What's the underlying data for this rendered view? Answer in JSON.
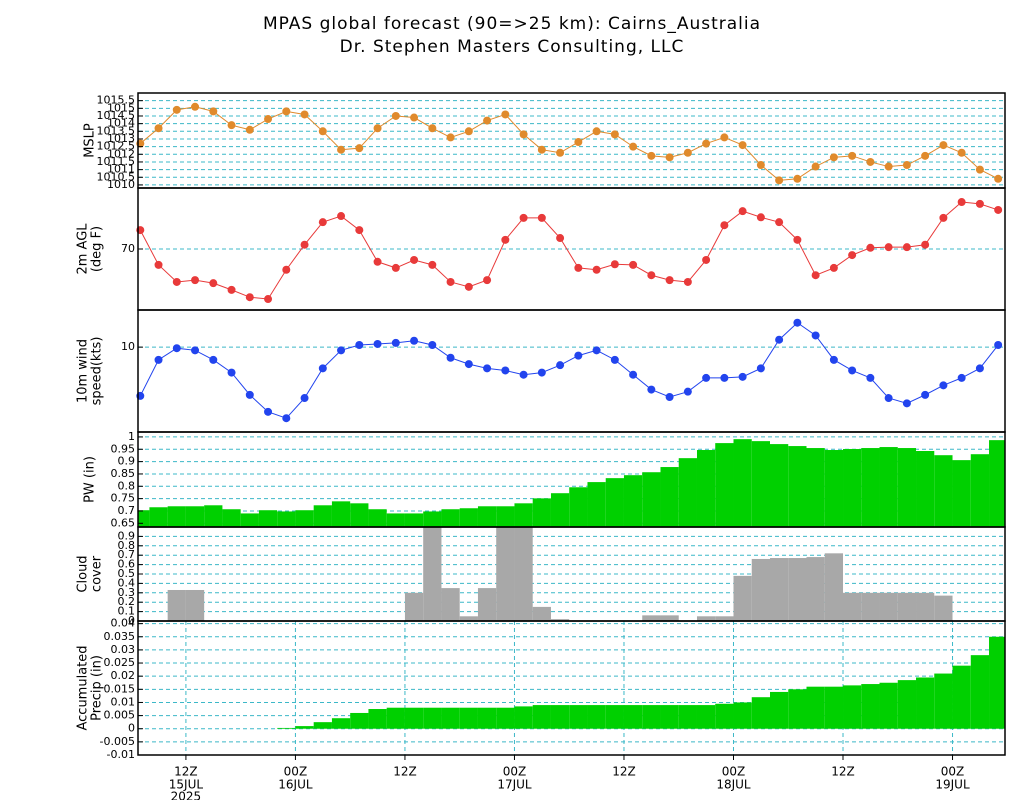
{
  "title": [
    "MPAS global forecast (90=>25 km): Cairns_Australia",
    "Dr. Stephen Masters Consulting, LLC"
  ],
  "chart_data": [
    {
      "type": "line",
      "ylabel": [
        "MSLP"
      ],
      "color": "#e08a2c",
      "grid": true,
      "xlim": [
        6.75,
        101.75
      ],
      "ylim": [
        1009.8,
        1016.0
      ],
      "yticks": [
        1010,
        1010.5,
        1011,
        1011.5,
        1012,
        1012.5,
        1013,
        1013.5,
        1014,
        1014.5,
        1015,
        1015.5
      ],
      "x": [
        7,
        9,
        11,
        13,
        15,
        17,
        19,
        21,
        23,
        25,
        27,
        29,
        31,
        33,
        35,
        37,
        39,
        41,
        43,
        45,
        47,
        49,
        51,
        53,
        55,
        57,
        59,
        61,
        63,
        65,
        67,
        69,
        71,
        73,
        75,
        77,
        79,
        81,
        83,
        85,
        87,
        89,
        91,
        93,
        95,
        97,
        99,
        101
      ],
      "values": [
        1012.7,
        1013.7,
        1014.9,
        1015.1,
        1014.8,
        1013.9,
        1013.6,
        1014.3,
        1014.8,
        1014.6,
        1013.5,
        1012.3,
        1012.4,
        1013.7,
        1014.5,
        1014.4,
        1013.7,
        1013.1,
        1013.5,
        1014.2,
        1014.6,
        1013.3,
        1012.3,
        1012.1,
        1012.8,
        1013.5,
        1013.3,
        1012.5,
        1011.9,
        1011.8,
        1012.1,
        1012.7,
        1013.1,
        1012.6,
        1011.3,
        1010.3,
        1010.4,
        1011.2,
        1011.8,
        1011.9,
        1011.5,
        1011.2,
        1011.3,
        1011.9,
        1012.6,
        1012.1,
        1011.0,
        1010.4
      ]
    },
    {
      "type": "line",
      "ylabel": [
        "2m AGL",
        "(deg F)"
      ],
      "color": "#e83a3a",
      "grid": true,
      "xlim": [
        6.75,
        101.75
      ],
      "ylim": [
        60,
        80
      ],
      "yticks": [
        70
      ],
      "x": [
        7,
        9,
        11,
        13,
        15,
        17,
        19,
        21,
        23,
        25,
        27,
        29,
        31,
        33,
        35,
        37,
        39,
        41,
        43,
        45,
        47,
        49,
        51,
        53,
        55,
        57,
        59,
        61,
        63,
        65,
        67,
        69,
        71,
        73,
        75,
        77,
        79,
        81,
        83,
        85,
        87,
        89,
        91,
        93,
        95,
        97,
        99,
        101
      ],
      "values": [
        73.1,
        67.4,
        64.6,
        64.9,
        64.4,
        63.3,
        62.1,
        61.8,
        66.6,
        70.7,
        74.4,
        75.4,
        73.1,
        67.9,
        66.9,
        68.2,
        67.4,
        64.6,
        63.8,
        64.9,
        71.5,
        75.1,
        75.1,
        71.8,
        66.9,
        66.6,
        67.5,
        67.4,
        65.7,
        64.9,
        64.6,
        68.2,
        73.9,
        76.2,
        75.2,
        74.4,
        71.5,
        65.7,
        66.9,
        69.0,
        70.2,
        70.3,
        70.3,
        70.7,
        75.1,
        77.7,
        77.4,
        76.4
      ]
    },
    {
      "type": "line",
      "ylabel": [
        "10m wind",
        "speed(kts)"
      ],
      "color": "#2244ee",
      "grid": true,
      "xlim": [
        6.75,
        101.75
      ],
      "ylim": [
        2,
        13.5
      ],
      "yticks": [
        10
      ],
      "x": [
        7,
        9,
        11,
        13,
        15,
        17,
        19,
        21,
        23,
        25,
        27,
        29,
        31,
        33,
        35,
        37,
        39,
        41,
        43,
        45,
        47,
        49,
        51,
        53,
        55,
        57,
        59,
        61,
        63,
        65,
        67,
        69,
        71,
        73,
        75,
        77,
        79,
        81,
        83,
        85,
        87,
        89,
        91,
        93,
        95,
        97,
        99,
        101
      ],
      "values": [
        5.4,
        8.8,
        9.9,
        9.7,
        8.8,
        7.6,
        5.5,
        3.9,
        3.3,
        5.2,
        8.0,
        9.7,
        10.2,
        10.3,
        10.4,
        10.6,
        10.2,
        9.0,
        8.4,
        8.0,
        7.8,
        7.4,
        7.6,
        8.3,
        9.2,
        9.7,
        8.8,
        7.4,
        6.0,
        5.3,
        5.8,
        7.1,
        7.1,
        7.2,
        8.0,
        10.7,
        12.3,
        11.1,
        8.8,
        7.8,
        7.1,
        5.2,
        4.7,
        5.5,
        6.4,
        7.1,
        8.0,
        10.2
      ]
    },
    {
      "type": "bar",
      "ylabel": [
        "PW (in)"
      ],
      "color": "#00d000",
      "grid": true,
      "xlim": [
        6.75,
        101.75
      ],
      "ylim": [
        0.635,
        1.02
      ],
      "yticks": [
        0.65,
        0.7,
        0.75,
        0.8,
        0.85,
        0.9,
        0.95,
        1
      ],
      "x": [
        7,
        9,
        11,
        13,
        15,
        17,
        19,
        21,
        23,
        25,
        27,
        29,
        31,
        33,
        35,
        37,
        39,
        41,
        43,
        45,
        47,
        49,
        51,
        53,
        55,
        57,
        59,
        61,
        63,
        65,
        67,
        69,
        71,
        73,
        75,
        77,
        79,
        81,
        83,
        85,
        87,
        89,
        91,
        93,
        95,
        97,
        99,
        101
      ],
      "values": [
        0.703,
        0.715,
        0.719,
        0.719,
        0.723,
        0.707,
        0.69,
        0.703,
        0.698,
        0.703,
        0.723,
        0.739,
        0.731,
        0.707,
        0.69,
        0.69,
        0.698,
        0.707,
        0.711,
        0.719,
        0.719,
        0.731,
        0.751,
        0.772,
        0.796,
        0.817,
        0.833,
        0.845,
        0.857,
        0.878,
        0.914,
        0.947,
        0.975,
        0.991,
        0.983,
        0.971,
        0.963,
        0.955,
        0.947,
        0.951,
        0.955,
        0.959,
        0.955,
        0.943,
        0.926,
        0.906,
        0.93,
        0.987
      ]
    },
    {
      "type": "bar",
      "ylabel": [
        "Cloud",
        "cover"
      ],
      "color": "#a8a8a8",
      "grid": true,
      "xlim": [
        6.75,
        101.75
      ],
      "ylim": [
        0,
        1
      ],
      "yticks": [
        0,
        0.1,
        0.2,
        0.3,
        0.4,
        0.5,
        0.6,
        0.7,
        0.8,
        0.9
      ],
      "x": [
        7,
        9,
        11,
        13,
        15,
        17,
        19,
        21,
        23,
        25,
        27,
        29,
        31,
        33,
        35,
        37,
        39,
        41,
        43,
        45,
        47,
        49,
        51,
        53,
        55,
        57,
        59,
        61,
        63,
        65,
        67,
        69,
        71,
        73,
        75,
        77,
        79,
        81,
        83,
        85,
        87,
        89,
        91,
        93,
        95,
        97,
        99,
        101
      ],
      "values": [
        0,
        0,
        0.33,
        0.33,
        0,
        0,
        0,
        0,
        0,
        0,
        0,
        0,
        0,
        0,
        0,
        0.3,
        1,
        0.35,
        0.05,
        0.35,
        1,
        1,
        0.15,
        0.02,
        0,
        0,
        0,
        0,
        0.06,
        0.06,
        0,
        0.05,
        0.05,
        0.48,
        0.66,
        0.67,
        0.67,
        0.68,
        0.72,
        0.3,
        0.3,
        0.3,
        0.3,
        0.3,
        0.27,
        0,
        0,
        0
      ]
    },
    {
      "type": "bar",
      "ylabel": [
        "Accumulated",
        "Precip (in)"
      ],
      "color": "#00d000",
      "grid": true,
      "xgrid": true,
      "xlim": [
        6.75,
        101.75
      ],
      "ylim": [
        -0.01,
        0.041
      ],
      "yticks": [
        -0.01,
        -0.005,
        0,
        0.005,
        0.01,
        0.015,
        0.02,
        0.025,
        0.03,
        0.035,
        0.04
      ],
      "xticks": [
        {
          "value": 12,
          "label": "12Z"
        },
        {
          "value": 24,
          "label": "00Z"
        },
        {
          "value": 36,
          "label": "12Z"
        },
        {
          "value": 48,
          "label": "00Z"
        },
        {
          "value": 60,
          "label": "12Z"
        },
        {
          "value": 72,
          "label": "00Z"
        },
        {
          "value": 84,
          "label": "12Z"
        },
        {
          "value": 96,
          "label": "00Z"
        }
      ],
      "xday_labels": [
        {
          "value": 12,
          "label": "15JUL"
        },
        {
          "value": 24,
          "label": "16JUL"
        },
        {
          "value": 48,
          "label": "17JUL"
        },
        {
          "value": 72,
          "label": "18JUL"
        },
        {
          "value": 96,
          "label": "19JUL"
        }
      ],
      "xyear_label": {
        "value": 12,
        "label": "2025"
      },
      "x": [
        7,
        9,
        11,
        13,
        15,
        17,
        19,
        21,
        23,
        25,
        27,
        29,
        31,
        33,
        35,
        37,
        39,
        41,
        43,
        45,
        47,
        49,
        51,
        53,
        55,
        57,
        59,
        61,
        63,
        65,
        67,
        69,
        71,
        73,
        75,
        77,
        79,
        81,
        83,
        85,
        87,
        89,
        91,
        93,
        95,
        97,
        99,
        101
      ],
      "values": [
        0,
        0,
        0,
        0,
        0,
        0,
        0,
        0,
        0.0003,
        0.001,
        0.0025,
        0.004,
        0.006,
        0.0075,
        0.008,
        0.008,
        0.008,
        0.008,
        0.008,
        0.008,
        0.008,
        0.0085,
        0.009,
        0.009,
        0.009,
        0.009,
        0.009,
        0.009,
        0.009,
        0.009,
        0.009,
        0.009,
        0.0095,
        0.01,
        0.012,
        0.014,
        0.015,
        0.016,
        0.016,
        0.0165,
        0.017,
        0.0175,
        0.0185,
        0.0195,
        0.021,
        0.024,
        0.028,
        0.035
      ]
    }
  ]
}
